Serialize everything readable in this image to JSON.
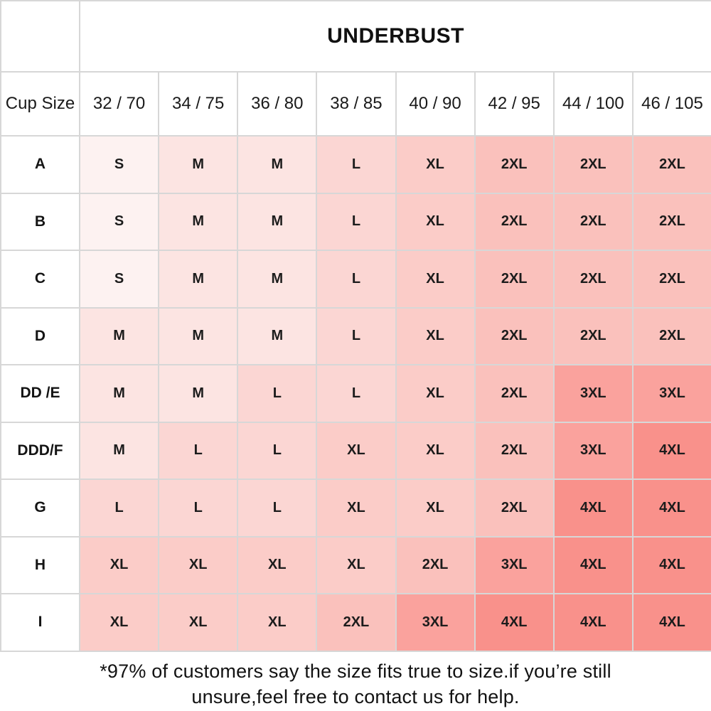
{
  "chart_data": {
    "type": "table",
    "title": "UNDERBUST",
    "corner_label": "Cup Size",
    "columns": [
      "32 / 70",
      "34 / 75",
      "36 / 80",
      "38 / 85",
      "40 / 90",
      "42 / 95",
      "44 / 100",
      "46 / 105"
    ],
    "rows": [
      {
        "cup": "A",
        "sizes": [
          "S",
          "M",
          "M",
          "L",
          "XL",
          "2XL",
          "2XL",
          "2XL"
        ]
      },
      {
        "cup": "B",
        "sizes": [
          "S",
          "M",
          "M",
          "L",
          "XL",
          "2XL",
          "2XL",
          "2XL"
        ]
      },
      {
        "cup": "C",
        "sizes": [
          "S",
          "M",
          "M",
          "L",
          "XL",
          "2XL",
          "2XL",
          "2XL"
        ]
      },
      {
        "cup": "D",
        "sizes": [
          "M",
          "M",
          "M",
          "L",
          "XL",
          "2XL",
          "2XL",
          "2XL"
        ]
      },
      {
        "cup": "DD /E",
        "sizes": [
          "M",
          "M",
          "L",
          "L",
          "XL",
          "2XL",
          "3XL",
          "3XL"
        ]
      },
      {
        "cup": "DDD/F",
        "sizes": [
          "M",
          "L",
          "L",
          "XL",
          "XL",
          "2XL",
          "3XL",
          "4XL"
        ]
      },
      {
        "cup": "G",
        "sizes": [
          "L",
          "L",
          "L",
          "XL",
          "XL",
          "2XL",
          "4XL",
          "4XL"
        ]
      },
      {
        "cup": "H",
        "sizes": [
          "XL",
          "XL",
          "XL",
          "XL",
          "2XL",
          "3XL",
          "4XL",
          "4XL"
        ]
      },
      {
        "cup": "I",
        "sizes": [
          "XL",
          "XL",
          "XL",
          "2XL",
          "3XL",
          "4XL",
          "4XL",
          "4XL"
        ]
      }
    ]
  },
  "size_colors": {
    "S": "#fdf2f1",
    "M": "#fce4e2",
    "L": "#fbd6d3",
    "XL": "#fbccc8",
    "2XL": "#fac1bc",
    "3XL": "#faa29d",
    "4XL": "#f9918b"
  },
  "footnote": {
    "line1": "*97% of customers say the size fits true to size.if you’re still",
    "line2": "unsure,feel free to contact us for help."
  }
}
